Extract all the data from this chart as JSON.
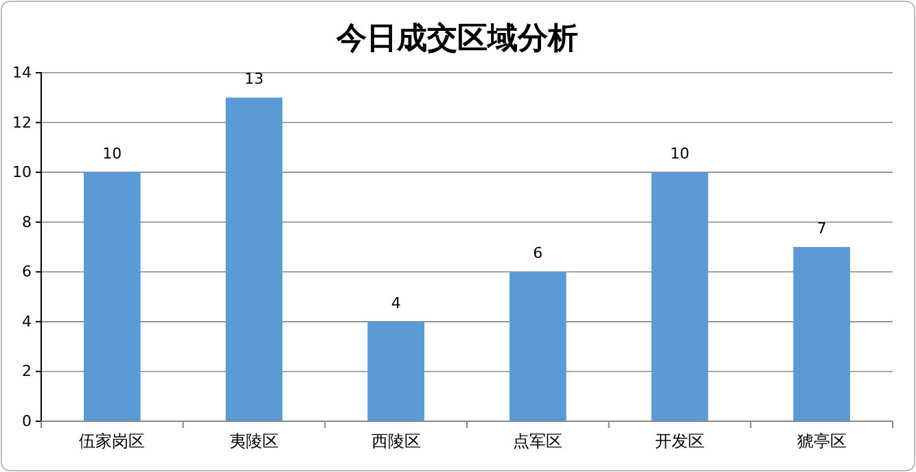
{
  "chart_data": {
    "type": "bar",
    "title": "今日成交区域分析",
    "categories": [
      "伍家岗区",
      "夷陵区",
      "西陵区",
      "点军区",
      "开发区",
      "猇亭区"
    ],
    "values": [
      10,
      13,
      4,
      6,
      10,
      7
    ],
    "color": "#5b9bd5",
    "ylim": [
      0,
      14
    ],
    "yticks": [
      0,
      2,
      4,
      6,
      8,
      10,
      12,
      14
    ],
    "grid": "y",
    "data_labels": true
  }
}
